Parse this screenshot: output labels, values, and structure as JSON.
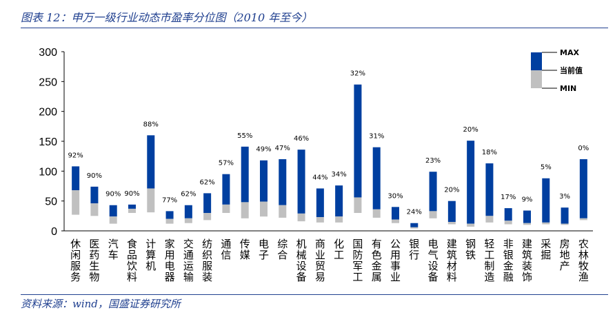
{
  "header": {
    "title": "图表 12：申万一级行业动态市盈率分位图（2010 年至今）"
  },
  "footer": {
    "source": "资料来源：wind，国盛证券研究所"
  },
  "colors": {
    "upper": "#003fa0",
    "lower": "#c0c0c0"
  },
  "chart_data": {
    "type": "bar",
    "ylim": [
      0,
      300
    ],
    "yticks": [
      0,
      50,
      100,
      150,
      200,
      250,
      300
    ],
    "legend": {
      "placement": "top-right",
      "max_label": "MAX",
      "current_label": "当前值",
      "min_label": "MIN"
    },
    "categories": [
      "休闲服务",
      "医药生物",
      "汽车",
      "食品饮料",
      "计算机",
      "家用电器",
      "交通运输",
      "纺织服装",
      "通信",
      "传媒",
      "电子",
      "综合",
      "机械设备",
      "商业贸易",
      "化工",
      "国防军工",
      "有色金属",
      "公用事业",
      "银行",
      "电气设备",
      "建筑材料",
      "钢铁",
      "轻工制造",
      "非银金融",
      "建筑装饰",
      "采掘",
      "房地产",
      "农林牧渔"
    ],
    "max": [
      108,
      74,
      43,
      44,
      160,
      33,
      43,
      63,
      95,
      141,
      118,
      120,
      136,
      71,
      76,
      245,
      140,
      40,
      13,
      99,
      50,
      151,
      113,
      38,
      34,
      88,
      39,
      120
    ],
    "current": [
      68,
      46,
      24,
      37,
      71,
      20,
      21,
      30,
      44,
      48,
      49,
      43,
      29,
      23,
      24,
      56,
      36,
      19,
      6,
      33,
      15,
      12,
      25,
      17,
      13,
      14,
      12,
      21
    ],
    "min": [
      27,
      25,
      12,
      30,
      31,
      12,
      13,
      18,
      30,
      21,
      24,
      22,
      16,
      14,
      14,
      30,
      22,
      13,
      4,
      21,
      11,
      7,
      14,
      11,
      10,
      11,
      10,
      18
    ],
    "labels": [
      "92%",
      "90%",
      "90%",
      "90%",
      "88%",
      "77%",
      "62%",
      "62%",
      "57%",
      "55%",
      "49%",
      "47%",
      "46%",
      "44%",
      "34%",
      "32%",
      "31%",
      "30%",
      "24%",
      "23%",
      "20%",
      "20%",
      "18%",
      "17%",
      "9%",
      "5%",
      "3%",
      "0%"
    ]
  }
}
